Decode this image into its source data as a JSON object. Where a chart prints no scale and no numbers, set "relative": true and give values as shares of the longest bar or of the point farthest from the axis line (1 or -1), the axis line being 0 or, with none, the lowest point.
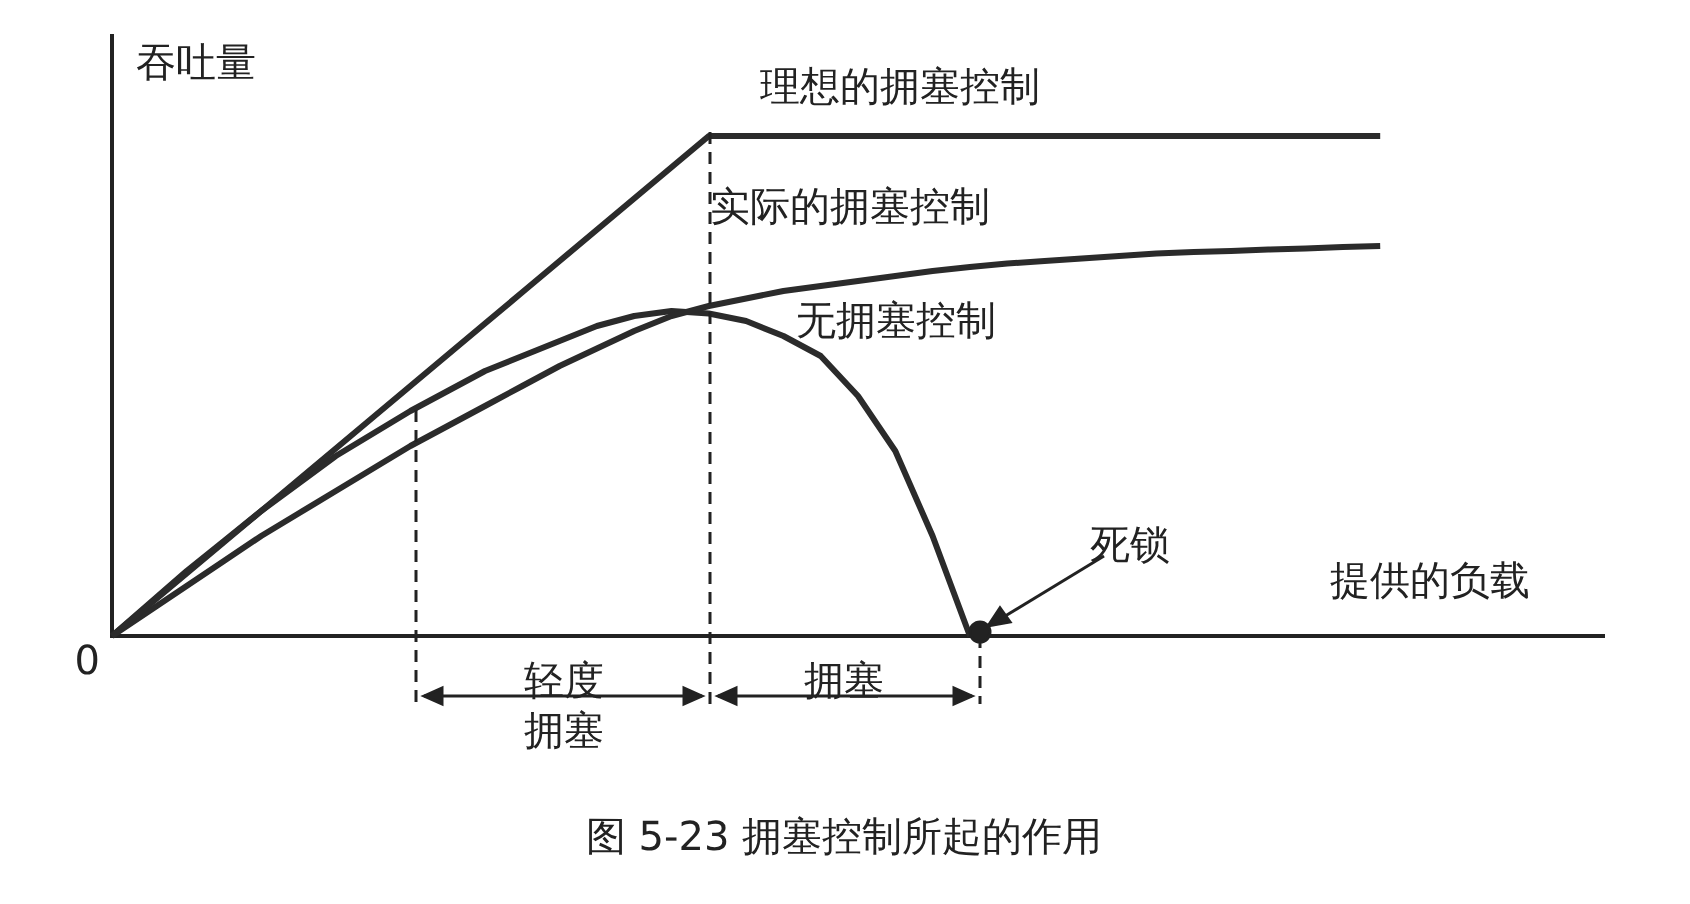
{
  "chart_data": {
    "type": "line",
    "relative": true,
    "xlabel": "提供的负载",
    "ylabel": "吞吐量",
    "legend": false,
    "grid": false,
    "marker": "none",
    "categories": [
      null,
      null,
      null,
      null,
      null,
      null,
      null,
      null,
      null,
      null,
      null,
      null,
      null,
      null,
      null,
      null,
      null,
      null,
      null,
      null,
      null,
      null,
      null,
      null,
      null,
      null,
      null,
      null,
      null,
      null,
      null,
      null,
      null,
      null,
      null,
      null,
      null,
      null,
      null,
      null,
      null
    ],
    "series": [
      {
        "name": "理想的拥塞控制",
        "color": "#2b2b2b",
        "values": [
          0,
          0.0625,
          0.125,
          0.1875,
          0.25,
          0.3125,
          0.375,
          0.4375,
          0.5,
          0.5625,
          0.625,
          0.6875,
          0.75,
          0.8125,
          0.875,
          0.9375,
          1,
          1,
          1,
          1,
          1,
          1,
          1,
          1,
          1,
          1,
          1,
          1,
          1,
          1,
          1,
          1,
          1,
          1,
          1,
          null,
          null,
          null,
          null,
          null,
          null
        ]
      },
      {
        "name": "实际的拥塞控制",
        "color": "#2b2b2b",
        "values": [
          0,
          0.05,
          0.1,
          0.15,
          0.2,
          0.245,
          0.29,
          0.335,
          0.38,
          0.42,
          0.46,
          0.5,
          0.54,
          0.575,
          0.61,
          0.64,
          0.66,
          0.675,
          0.69,
          0.7,
          0.71,
          0.72,
          0.73,
          0.738,
          0.745,
          0.75,
          0.755,
          0.76,
          0.765,
          0.768,
          0.77,
          0.773,
          0.775,
          0.778,
          0.78,
          null,
          null,
          null,
          null,
          null,
          null
        ]
      },
      {
        "name": "无拥塞控制",
        "color": "#2b2b2b",
        "values": [
          0,
          0.065,
          0.13,
          0.19,
          0.25,
          0.305,
          0.36,
          0.405,
          0.45,
          0.49,
          0.53,
          0.56,
          0.59,
          0.62,
          0.64,
          0.65,
          0.645,
          0.63,
          0.6,
          0.56,
          0.48,
          0.37,
          0.2,
          0,
          null,
          null,
          null,
          null,
          null,
          null,
          null,
          null,
          null,
          null,
          null,
          null,
          null,
          null,
          null,
          null,
          null
        ]
      }
    ],
    "annotations": [
      "0",
      "轻度拥塞",
      "拥塞",
      "死锁",
      "图 5-23 拥塞控制所起的作用"
    ]
  }
}
